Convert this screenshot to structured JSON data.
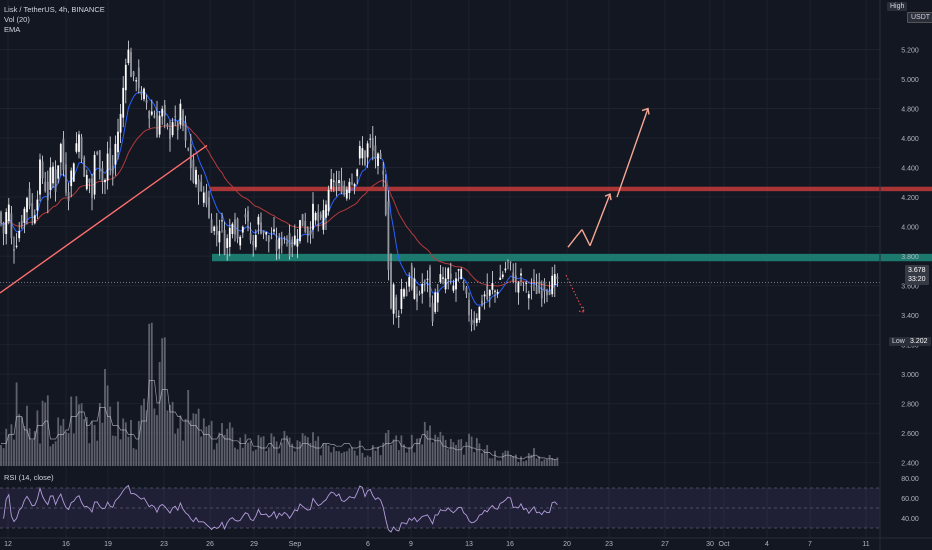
{
  "header": {
    "symbol_line": "Lisk / TetherUS, 4h, BINANCE",
    "indicator_vol": "Vol (20)",
    "indicator_ema": "EMA",
    "rsi_label": "RSI (14, close)"
  },
  "price_axis": {
    "currency": "USDT",
    "high_label": "High",
    "low_label": "Low",
    "low_value": "3.202",
    "current_price": "3.678",
    "countdown": "33:20"
  },
  "chart_data": [
    {
      "type": "candlestick",
      "title": "Lisk / TetherUS, 4h, BINANCE",
      "x_tick_labels": [
        "12",
        "16",
        "19",
        "23",
        "26",
        "29",
        "Sep",
        "6",
        "9",
        "13",
        "16",
        "20",
        "23",
        "27",
        "30",
        "Oct",
        "4",
        "7",
        "11"
      ],
      "y_tick_labels": [
        "5.200",
        "5.000",
        "4.800",
        "4.600",
        "4.400",
        "4.200",
        "4.000",
        "3.800",
        "3.600",
        "3.400",
        "3.200",
        "3.000",
        "2.800",
        "2.600",
        "2.400"
      ],
      "ylim": [
        2.35,
        5.4
      ],
      "ohlc_path": [
        [
          0,
          4.05
        ],
        [
          4,
          3.95
        ],
        [
          8,
          4.2
        ],
        [
          12,
          3.85
        ],
        [
          16,
          3.9
        ],
        [
          20,
          4.0
        ],
        [
          24,
          4.1
        ],
        [
          28,
          4.25
        ],
        [
          32,
          4.05
        ],
        [
          36,
          4.15
        ],
        [
          40,
          4.4
        ],
        [
          44,
          4.3
        ],
        [
          48,
          4.2
        ],
        [
          52,
          4.45
        ],
        [
          56,
          4.25
        ],
        [
          60,
          4.6
        ],
        [
          64,
          4.35
        ],
        [
          68,
          4.2
        ],
        [
          72,
          4.4
        ],
        [
          76,
          4.55
        ],
        [
          80,
          4.65
        ],
        [
          84,
          4.3
        ],
        [
          88,
          4.35
        ],
        [
          92,
          4.2
        ],
        [
          96,
          4.6
        ],
        [
          100,
          4.4
        ],
        [
          104,
          4.25
        ],
        [
          108,
          4.5
        ],
        [
          112,
          4.3
        ],
        [
          116,
          4.6
        ],
        [
          120,
          4.7
        ],
        [
          124,
          5.0
        ],
        [
          127,
          5.25
        ],
        [
          130,
          5.1
        ],
        [
          133,
          4.95
        ],
        [
          137,
          5.05
        ],
        [
          141,
          4.85
        ],
        [
          145,
          4.9
        ],
        [
          149,
          4.75
        ],
        [
          153,
          4.8
        ],
        [
          157,
          4.65
        ],
        [
          161,
          4.8
        ],
        [
          165,
          4.7
        ],
        [
          169,
          4.6
        ],
        [
          173,
          4.75
        ],
        [
          177,
          4.65
        ],
        [
          181,
          4.8
        ],
        [
          185,
          4.55
        ],
        [
          189,
          4.5
        ],
        [
          193,
          4.3
        ],
        [
          197,
          4.35
        ],
        [
          201,
          4.2
        ],
        [
          205,
          4.25
        ],
        [
          209,
          4.05
        ],
        [
          213,
          4.0
        ],
        [
          217,
          3.95
        ],
        [
          221,
          4.05
        ],
        [
          225,
          3.85
        ],
        [
          229,
          3.95
        ],
        [
          233,
          4.1
        ],
        [
          237,
          3.9
        ],
        [
          241,
          4.0
        ],
        [
          245,
          4.1
        ],
        [
          249,
          3.95
        ],
        [
          253,
          3.85
        ],
        [
          257,
          4.05
        ],
        [
          261,
          4.0
        ],
        [
          265,
          3.95
        ],
        [
          269,
          3.9
        ],
        [
          273,
          3.95
        ],
        [
          277,
          3.85
        ],
        [
          281,
          3.9
        ],
        [
          285,
          3.95
        ],
        [
          289,
          3.85
        ],
        [
          293,
          3.9
        ],
        [
          297,
          3.95
        ],
        [
          301,
          4.05
        ],
        [
          305,
          4.0
        ],
        [
          309,
          3.95
        ],
        [
          313,
          4.1
        ],
        [
          317,
          4.05
        ],
        [
          321,
          4.0
        ],
        [
          325,
          4.15
        ],
        [
          329,
          4.2
        ],
        [
          333,
          4.35
        ],
        [
          337,
          4.25
        ],
        [
          341,
          4.3
        ],
        [
          345,
          4.2
        ],
        [
          349,
          4.35
        ],
        [
          353,
          4.3
        ],
        [
          357,
          4.4
        ],
        [
          361,
          4.55
        ],
        [
          365,
          4.45
        ],
        [
          369,
          4.6
        ],
        [
          373,
          4.5
        ],
        [
          377,
          4.45
        ],
        [
          381,
          4.4
        ],
        [
          385,
          4.25
        ],
        [
          388,
          3.8
        ],
        [
          391,
          3.45
        ],
        [
          394,
          3.6
        ],
        [
          397,
          3.35
        ],
        [
          400,
          3.5
        ],
        [
          403,
          3.65
        ],
        [
          406,
          3.5
        ],
        [
          409,
          3.7
        ],
        [
          412,
          3.55
        ],
        [
          415,
          3.6
        ],
        [
          418,
          3.45
        ],
        [
          421,
          3.65
        ],
        [
          424,
          3.55
        ],
        [
          427,
          3.7
        ],
        [
          430,
          3.5
        ],
        [
          433,
          3.4
        ],
        [
          436,
          3.55
        ],
        [
          440,
          3.65
        ],
        [
          444,
          3.6
        ],
        [
          448,
          3.7
        ],
        [
          452,
          3.55
        ],
        [
          456,
          3.65
        ],
        [
          460,
          3.7
        ],
        [
          464,
          3.55
        ],
        [
          468,
          3.45
        ],
        [
          472,
          3.35
        ],
        [
          476,
          3.4
        ],
        [
          480,
          3.45
        ],
        [
          484,
          3.55
        ],
        [
          488,
          3.5
        ],
        [
          492,
          3.6
        ],
        [
          496,
          3.55
        ],
        [
          500,
          3.65
        ],
        [
          504,
          3.7
        ],
        [
          508,
          3.75
        ],
        [
          512,
          3.7
        ],
        [
          516,
          3.6
        ],
        [
          520,
          3.65
        ],
        [
          524,
          3.6
        ],
        [
          528,
          3.55
        ],
        [
          532,
          3.6
        ],
        [
          536,
          3.58
        ],
        [
          540,
          3.55
        ],
        [
          544,
          3.6
        ],
        [
          548,
          3.58
        ],
        [
          552,
          3.62
        ],
        [
          556,
          3.62
        ],
        [
          560,
          3.678
        ]
      ],
      "trendline": {
        "from": [
          0,
          3.55
        ],
        "to": [
          207,
          4.55
        ],
        "color": "#ff6e6e"
      },
      "resistance_zone": {
        "from_x": 210,
        "to_x": 932,
        "y_low": 4.24,
        "y_high": 4.27,
        "color": "#c43b3b"
      },
      "support_zone": {
        "from_x": 212,
        "to_x": 932,
        "y_low": 3.765,
        "y_high": 3.815,
        "color": "#1e8b7a"
      },
      "forecast_up": [
        [
          568,
          3.86
        ],
        [
          576,
          3.93
        ],
        [
          582,
          3.98
        ],
        [
          590,
          3.87
        ],
        [
          610,
          4.22
        ],
        [
          617,
          4.2
        ],
        [
          648,
          4.8
        ],
        [
          650,
          4.76
        ]
      ],
      "forecast_down": [
        [
          566,
          3.67
        ],
        [
          584,
          3.42
        ]
      ],
      "forecast_color": "#f5a893",
      "ema_color": "#b33a3a",
      "ema2_color": "#2962ff",
      "candle_color": "#e0e3eb"
    },
    {
      "type": "bar",
      "title": "Vol (20)",
      "note": "volume histogram",
      "values_relative": [
        0.25,
        0.35,
        0.55,
        0.4,
        0.3,
        0.45,
        0.5,
        0.3,
        0.35,
        0.4,
        0.55,
        0.6,
        0.45,
        0.5,
        0.65,
        0.55,
        0.45,
        0.4,
        0.35,
        0.3,
        0.5,
        0.95,
        0.7,
        0.85,
        0.6,
        0.55,
        0.5,
        0.45,
        0.4,
        0.35,
        0.3,
        0.35,
        0.3,
        0.28,
        0.25,
        0.3,
        0.22,
        0.2,
        0.25,
        0.2,
        0.3,
        0.22,
        0.2,
        0.25,
        0.22,
        0.2,
        0.25,
        0.24,
        0.22,
        0.25,
        0.2,
        0.22,
        0.18,
        0.2,
        0.22,
        0.25,
        0.28,
        0.22,
        0.2,
        0.25,
        0.35,
        0.3,
        0.28,
        0.22,
        0.2,
        0.18,
        0.22,
        0.2,
        0.18,
        0.15,
        0.12,
        0.1,
        0.12,
        0.1,
        0.08,
        0.1,
        0.12,
        0.09,
        0.08,
        0.07
      ]
    },
    {
      "type": "line",
      "title": "RSI (14, close)",
      "y_tick_labels": [
        "80.00",
        "60.00",
        "40.00"
      ],
      "ylim": [
        25,
        85
      ],
      "bands": [
        70,
        50,
        30
      ]
    }
  ]
}
